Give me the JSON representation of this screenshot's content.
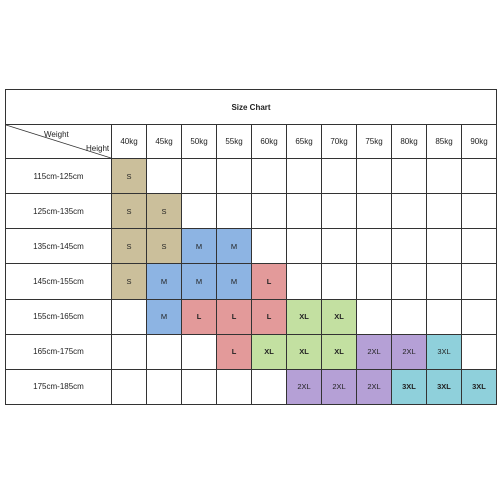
{
  "title": "Size Chart",
  "corner": {
    "weight_label": "Weight",
    "height_label": "Height"
  },
  "weights": [
    "40kg",
    "45kg",
    "50kg",
    "55kg",
    "60kg",
    "65kg",
    "70kg",
    "75kg",
    "80kg",
    "85kg",
    "90kg"
  ],
  "rows": [
    {
      "height": "115cm-125cm",
      "cells": [
        "S",
        "",
        "",
        "",
        "",
        "",
        "",
        "",
        "",
        "",
        ""
      ]
    },
    {
      "height": "125cm-135cm",
      "cells": [
        "S",
        "S",
        "",
        "",
        "",
        "",
        "",
        "",
        "",
        "",
        ""
      ]
    },
    {
      "height": "135cm-145cm",
      "cells": [
        "S",
        "S",
        "M",
        "M",
        "",
        "",
        "",
        "",
        "",
        "",
        ""
      ]
    },
    {
      "height": "145cm-155cm",
      "cells": [
        "S",
        "M",
        "M",
        "M",
        "L",
        "",
        "",
        "",
        "",
        "",
        ""
      ]
    },
    {
      "height": "155cm-165cm",
      "cells": [
        "",
        "M",
        "L",
        "L",
        "L",
        "XL",
        "XL",
        "",
        "",
        "",
        ""
      ]
    },
    {
      "height": "165cm-175cm",
      "cells": [
        "",
        "",
        "",
        "L",
        "XL",
        "XL",
        "XL",
        "2XL",
        "2XL",
        "3XL",
        ""
      ]
    },
    {
      "height": "175cm-185cm",
      "cells": [
        "",
        "",
        "",
        "",
        "",
        "2XL",
        "2XL",
        "2XL",
        "3XL",
        "3XL",
        "3XL"
      ]
    }
  ],
  "colors": {
    "S": "#cbbf9b",
    "M": "#8db4e3",
    "L": "#e39a9a",
    "XL": "#c3e0a1",
    "2XL": "#b5a0d6",
    "3XL": "#8fd0db"
  }
}
